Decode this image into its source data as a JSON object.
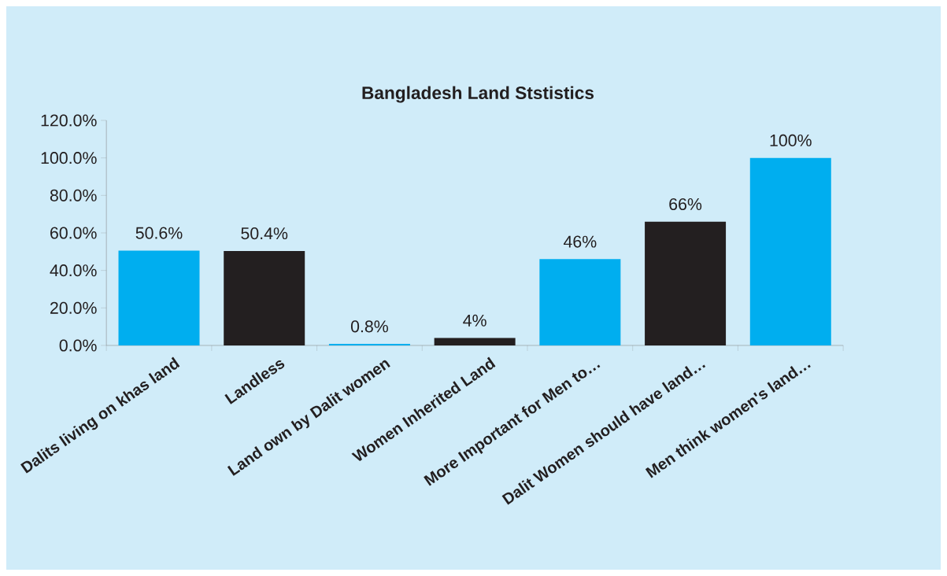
{
  "chart_data": {
    "type": "bar",
    "title": "Bangladesh Land Ststistics",
    "categories": [
      "Dalits living on khas land",
      "Landless",
      "Land own by Dalit women",
      "Women Inherited Land",
      "More Important for Men to…",
      "Dalit Women should have land…",
      "Men think women's land…"
    ],
    "values": [
      50.6,
      50.4,
      0.8,
      4,
      46,
      66,
      100
    ],
    "value_labels": [
      "50.6%",
      "50.4%",
      "0.8%",
      "4%",
      "46%",
      "66%",
      "100%"
    ],
    "colors": [
      "#00aeef",
      "#231f20",
      "#00aeef",
      "#231f20",
      "#00aeef",
      "#231f20",
      "#00aeef"
    ],
    "ylim": [
      0,
      120
    ],
    "yticks": [
      {
        "value": 0,
        "label": "0.0%"
      },
      {
        "value": 20,
        "label": "20.0%"
      },
      {
        "value": 40,
        "label": "40.0%"
      },
      {
        "value": 60,
        "label": "60.0%"
      },
      {
        "value": 80,
        "label": "80.0%"
      },
      {
        "value": 100,
        "label": "100.0%"
      },
      {
        "value": 120,
        "label": "120.0%"
      }
    ]
  }
}
